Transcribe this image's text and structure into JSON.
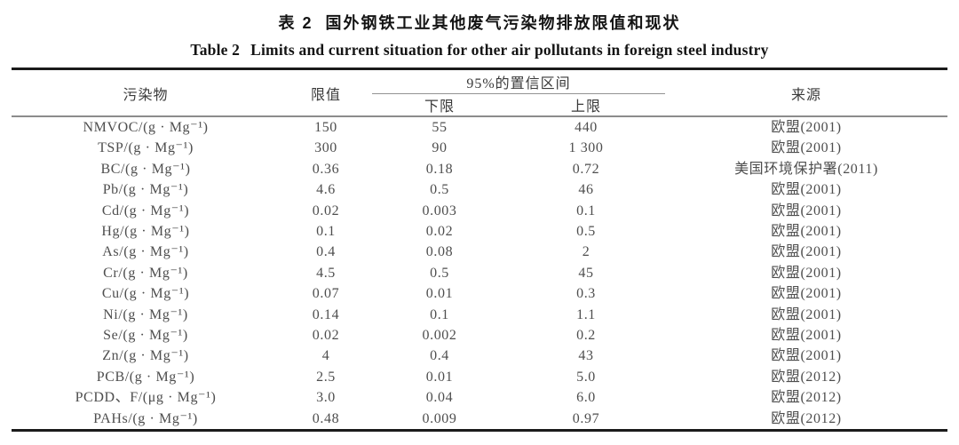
{
  "titles": {
    "zh_label": "表 2",
    "zh_text": "国外钢铁工业其他废气污染物排放限值和现状",
    "en_label": "Table 2",
    "en_text": "Limits and current situation for other air pollutants in foreign steel industry"
  },
  "table": {
    "headers": {
      "pollutant": "污染物",
      "limit": "限值",
      "ci_group": "95%的置信区间",
      "ci_lower": "下限",
      "ci_upper": "上限",
      "source": "来源"
    },
    "rows": [
      {
        "pollutant": "NMVOC/(g · Mg⁻¹)",
        "limit": "150",
        "lower": "55",
        "upper": "440",
        "source": "欧盟(2001)"
      },
      {
        "pollutant": "TSP/(g · Mg⁻¹)",
        "limit": "300",
        "lower": "90",
        "upper": "1 300",
        "source": "欧盟(2001)"
      },
      {
        "pollutant": "BC/(g · Mg⁻¹)",
        "limit": "0.36",
        "lower": "0.18",
        "upper": "0.72",
        "source": "美国环境保护署(2011)"
      },
      {
        "pollutant": "Pb/(g · Mg⁻¹)",
        "limit": "4.6",
        "lower": "0.5",
        "upper": "46",
        "source": "欧盟(2001)"
      },
      {
        "pollutant": "Cd/(g · Mg⁻¹)",
        "limit": "0.02",
        "lower": "0.003",
        "upper": "0.1",
        "source": "欧盟(2001)"
      },
      {
        "pollutant": "Hg/(g · Mg⁻¹)",
        "limit": "0.1",
        "lower": "0.02",
        "upper": "0.5",
        "source": "欧盟(2001)"
      },
      {
        "pollutant": "As/(g · Mg⁻¹)",
        "limit": "0.4",
        "lower": "0.08",
        "upper": "2",
        "source": "欧盟(2001)"
      },
      {
        "pollutant": "Cr/(g · Mg⁻¹)",
        "limit": "4.5",
        "lower": "0.5",
        "upper": "45",
        "source": "欧盟(2001)"
      },
      {
        "pollutant": "Cu/(g · Mg⁻¹)",
        "limit": "0.07",
        "lower": "0.01",
        "upper": "0.3",
        "source": "欧盟(2001)"
      },
      {
        "pollutant": "Ni/(g · Mg⁻¹)",
        "limit": "0.14",
        "lower": "0.1",
        "upper": "1.1",
        "source": "欧盟(2001)"
      },
      {
        "pollutant": "Se/(g · Mg⁻¹)",
        "limit": "0.02",
        "lower": "0.002",
        "upper": "0.2",
        "source": "欧盟(2001)"
      },
      {
        "pollutant": "Zn/(g · Mg⁻¹)",
        "limit": "4",
        "lower": "0.4",
        "upper": "43",
        "source": "欧盟(2001)"
      },
      {
        "pollutant": "PCB/(g · Mg⁻¹)",
        "limit": "2.5",
        "lower": "0.01",
        "upper": "5.0",
        "source": "欧盟(2012)"
      },
      {
        "pollutant": "PCDD、F/(μg · Mg⁻¹)",
        "limit": "3.0",
        "lower": "0.04",
        "upper": "6.0",
        "source": "欧盟(2012)"
      },
      {
        "pollutant": "PAHs/(g · Mg⁻¹)",
        "limit": "0.48",
        "lower": "0.009",
        "upper": "0.97",
        "source": "欧盟(2012)"
      }
    ]
  },
  "colors": {
    "rule_heavy": "#1b1b1b",
    "rule_light": "#8c8c8c",
    "text_body": "#4e4e4e",
    "text_title": "#141414",
    "background": "#ffffff"
  }
}
